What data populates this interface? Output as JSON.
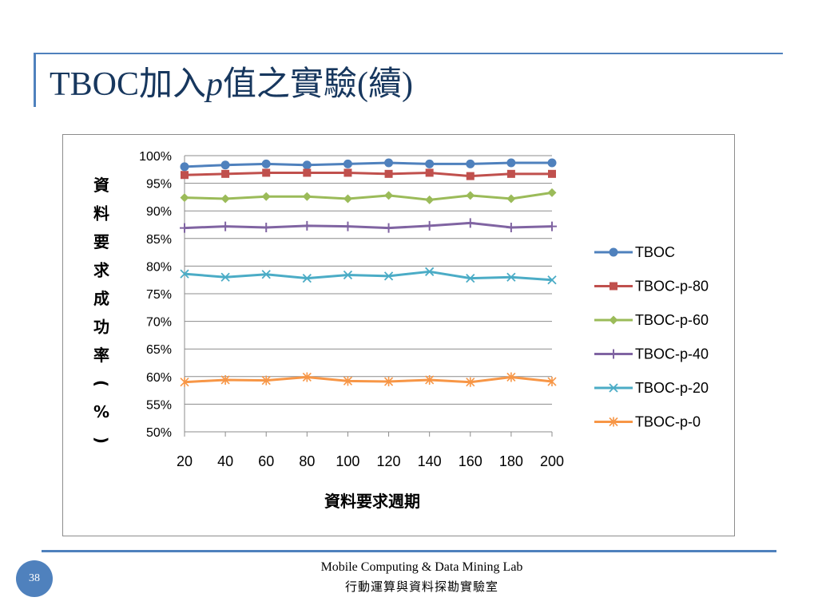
{
  "slide": {
    "title_prefix": "TBOC加入",
    "title_italic": "p",
    "title_suffix": "值之實驗(續)",
    "page_number": "38",
    "footer_en": "Mobile Computing & Data Mining Lab",
    "footer_zh": "行動運算與資料探勘實驗室"
  },
  "colors": {
    "accent": "#4f81bd",
    "title": "#17375e"
  },
  "chart_data": {
    "type": "line",
    "title": "",
    "xlabel": "資料要求週期",
    "ylabel": "資料要求成功率(%)",
    "x": [
      20,
      40,
      60,
      80,
      100,
      120,
      140,
      160,
      180,
      200
    ],
    "x_tick_labels": [
      "20",
      "40",
      "60",
      "80",
      "100",
      "120",
      "140",
      "160",
      "180",
      "200"
    ],
    "ylim": [
      50,
      100
    ],
    "y_ticks": [
      50,
      55,
      60,
      65,
      70,
      75,
      80,
      85,
      90,
      95,
      100
    ],
    "y_tick_labels": [
      "50%",
      "55%",
      "60%",
      "65%",
      "70%",
      "75%",
      "80%",
      "85%",
      "90%",
      "95%",
      "100%"
    ],
    "grid": true,
    "legend_position": "right",
    "series": [
      {
        "name": "TBOC",
        "color": "#4f81bd",
        "marker": "circle",
        "values": [
          98.0,
          98.3,
          98.5,
          98.3,
          98.5,
          98.7,
          98.5,
          98.5,
          98.7,
          98.7
        ]
      },
      {
        "name": "TBOC-p-80",
        "color": "#c0504d",
        "marker": "square",
        "values": [
          96.5,
          96.7,
          96.9,
          96.9,
          96.9,
          96.7,
          96.9,
          96.3,
          96.7,
          96.7
        ]
      },
      {
        "name": "TBOC-p-60",
        "color": "#9bbb59",
        "marker": "diamond",
        "values": [
          92.4,
          92.2,
          92.6,
          92.6,
          92.2,
          92.8,
          92.0,
          92.8,
          92.2,
          93.3
        ]
      },
      {
        "name": "TBOC-p-40",
        "color": "#8064a2",
        "marker": "plus",
        "values": [
          86.9,
          87.2,
          87.0,
          87.3,
          87.2,
          86.9,
          87.3,
          87.8,
          87.0,
          87.2
        ]
      },
      {
        "name": "TBOC-p-20",
        "color": "#4bacc6",
        "marker": "x",
        "values": [
          78.6,
          78.0,
          78.5,
          77.8,
          78.4,
          78.2,
          79.0,
          77.8,
          78.0,
          77.5
        ]
      },
      {
        "name": "TBOC-p-0",
        "color": "#f79646",
        "marker": "star",
        "values": [
          59.0,
          59.4,
          59.3,
          59.9,
          59.2,
          59.1,
          59.4,
          59.0,
          59.9,
          59.1
        ]
      }
    ]
  }
}
